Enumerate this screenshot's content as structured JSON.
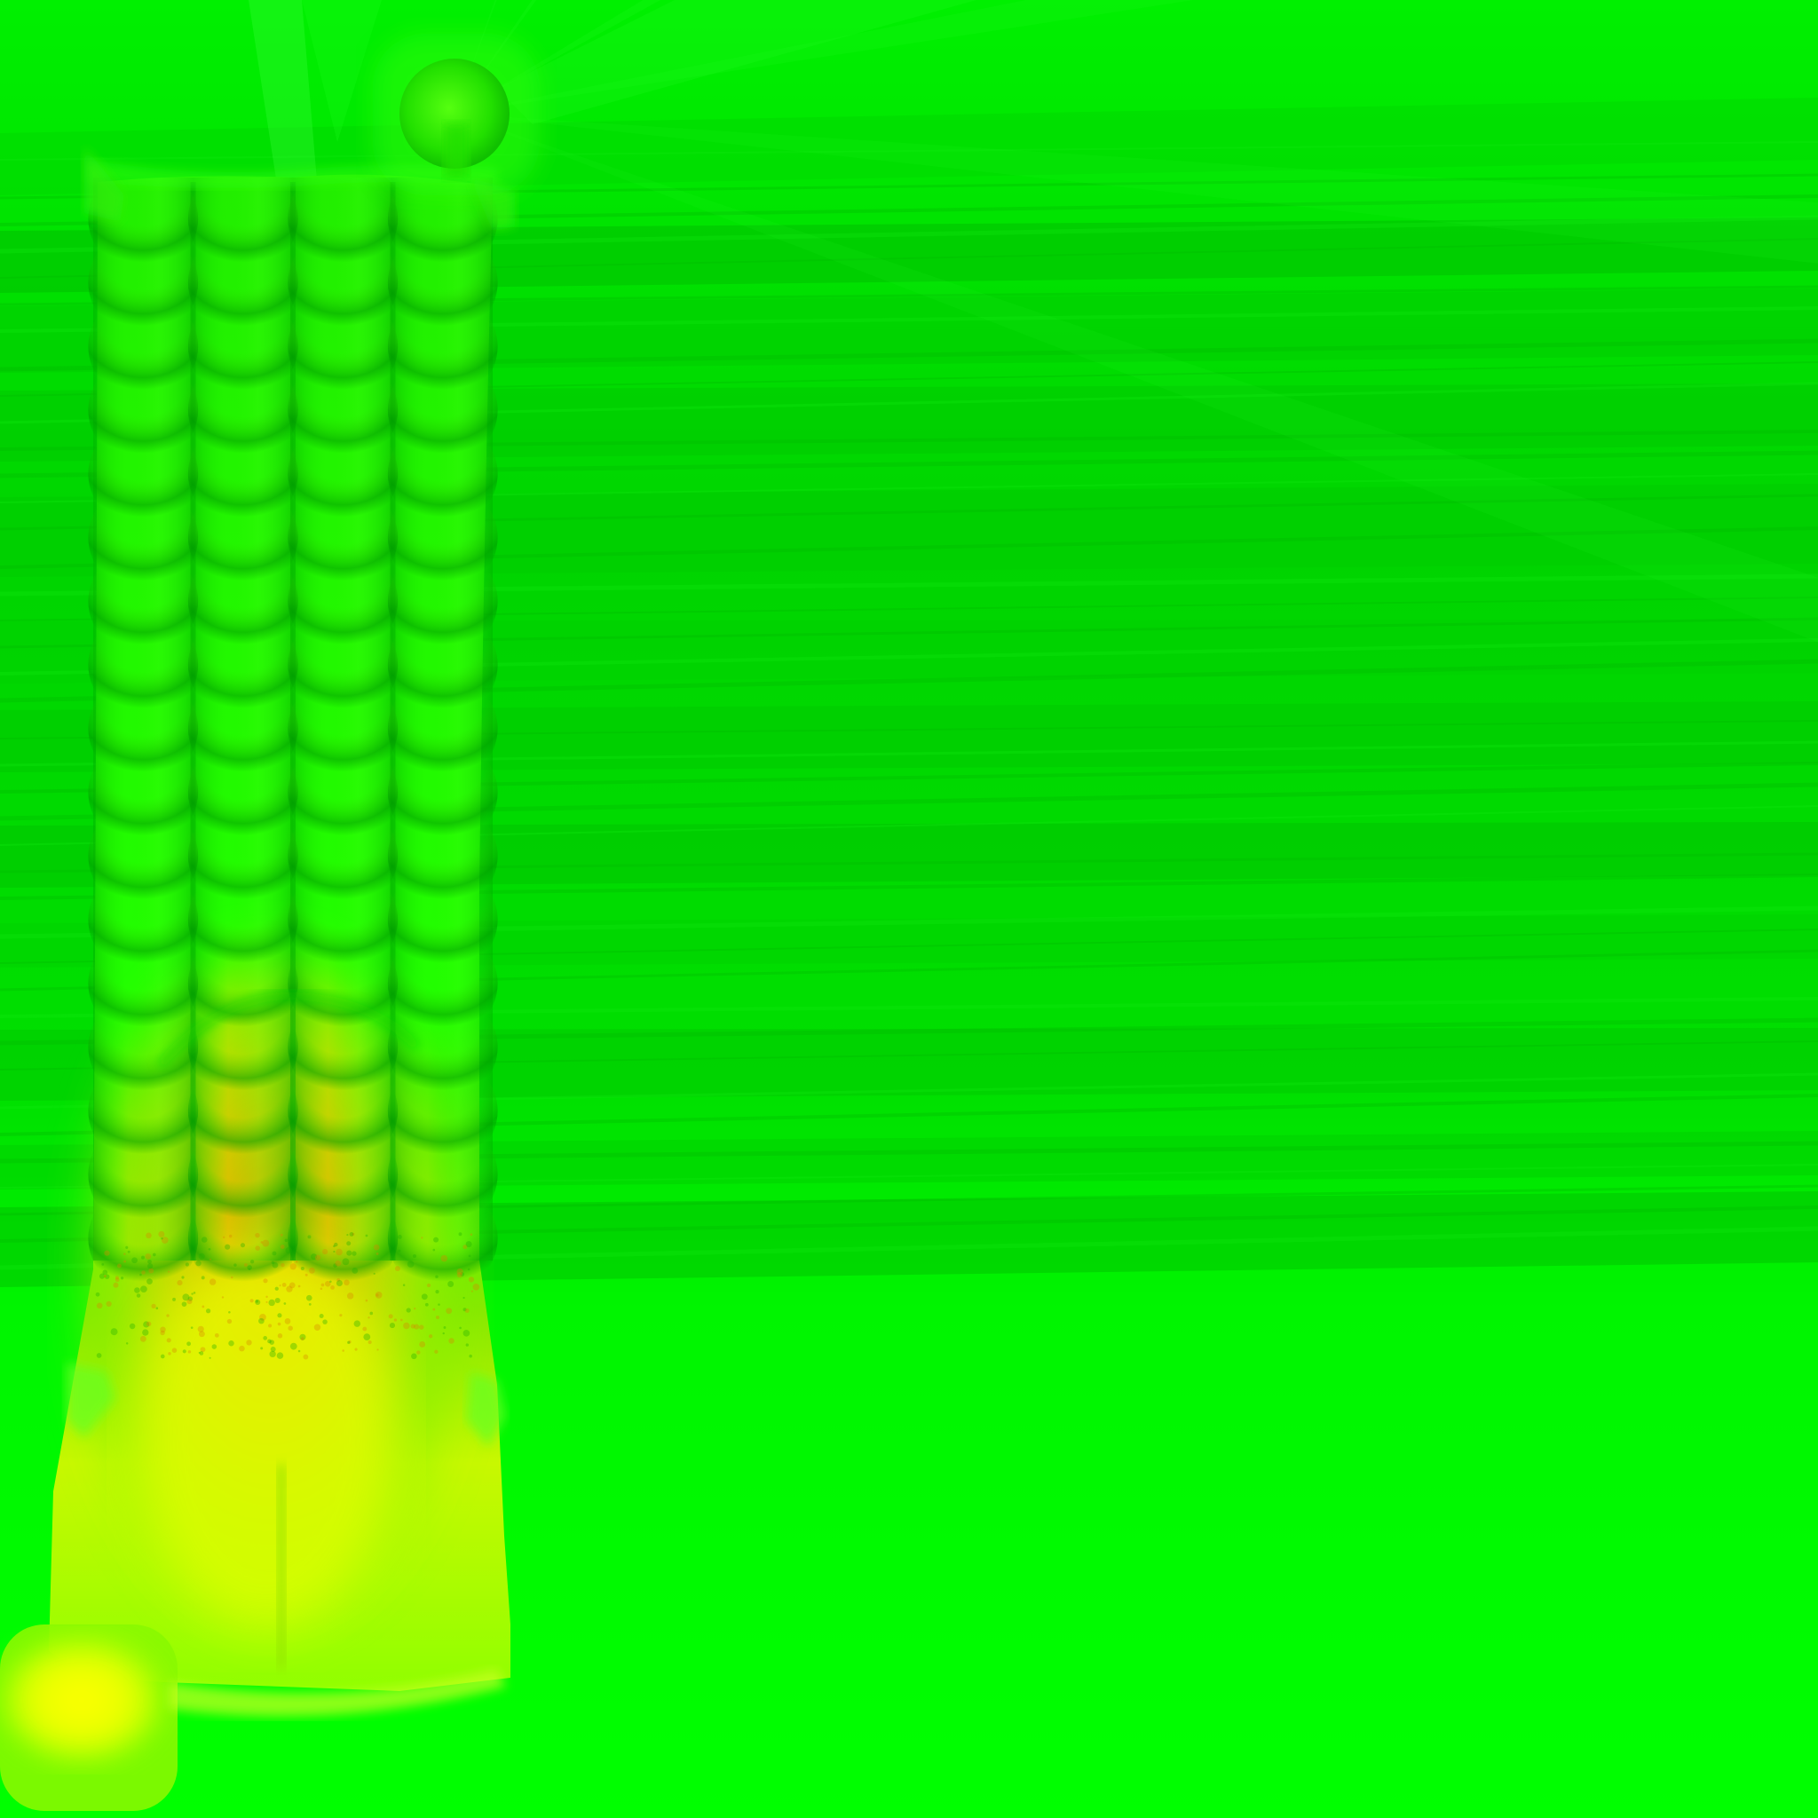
{
  "scene": {
    "title": "",
    "colors": {
      "background": "#00ff00",
      "band_dark": "#00c800",
      "band_mid": "#00dd00",
      "column_light": "#33ff00",
      "column_shadow": "#00b400",
      "heat_yellow": "#ffff00",
      "heat_orange": "#e8b800",
      "heat_lime": "#b8ff00",
      "ornament": "#3cff20"
    },
    "elements": {
      "background": "green-field",
      "bands": "horizontal-streak-bands",
      "column": "scaled-fluted-column",
      "capital_ornament": "ball-finial",
      "base_ornament": "glowing-foot",
      "heat_region": "yellow-orange-gradient"
    },
    "column_flutes": 4,
    "scale_rows": 17
  }
}
